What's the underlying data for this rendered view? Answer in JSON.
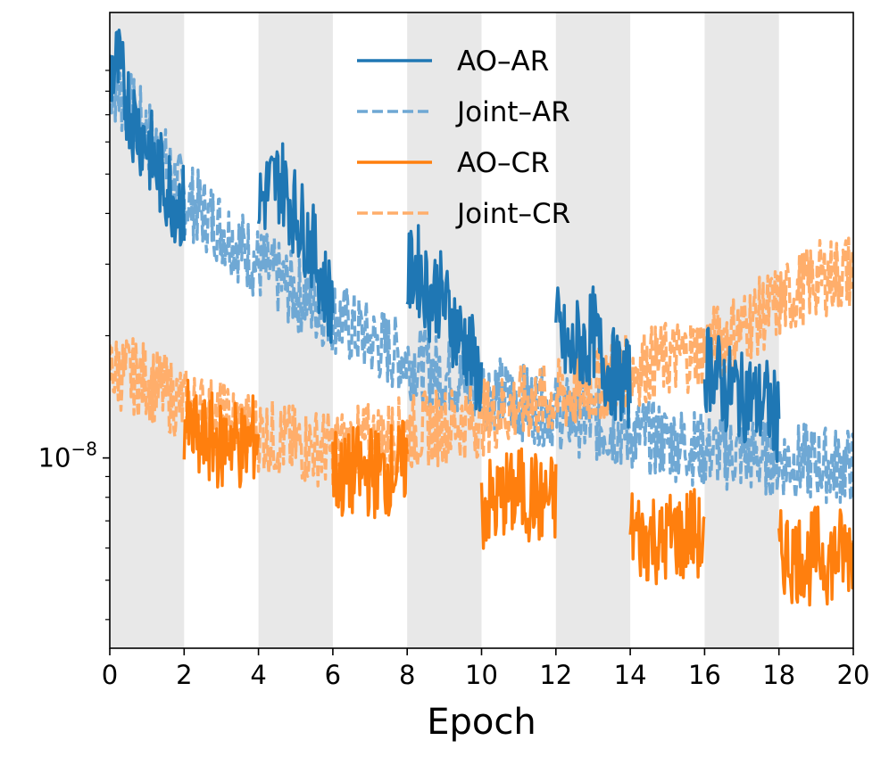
{
  "chart_data": {
    "type": "line",
    "xlabel": "Epoch",
    "ylabel": "",
    "yscale": "log",
    "xlim": [
      0,
      20
    ],
    "ylim": [
      3.4e-09,
      1.25e-07
    ],
    "x_ticks": [
      0,
      2,
      4,
      6,
      8,
      10,
      12,
      14,
      16,
      18,
      20
    ],
    "x_tick_labels": [
      "0",
      "2",
      "4",
      "6",
      "8",
      "10",
      "12",
      "14",
      "16",
      "18",
      "20"
    ],
    "y_major_tick": {
      "value": 1e-08,
      "label_base": "10",
      "label_exp": "−8"
    },
    "shaded_epoch_bands": [
      [
        0,
        2
      ],
      [
        4,
        6
      ],
      [
        8,
        10
      ],
      [
        12,
        14
      ],
      [
        16,
        18
      ]
    ],
    "legend": {
      "location": "top-center",
      "entries": [
        "AO–AR",
        "Joint–AR",
        "AO–CR",
        "Joint–CR"
      ]
    },
    "series": [
      {
        "name": "AO–AR",
        "color": "#1f77b4",
        "style": "solid",
        "segments": [
          {
            "x": [
              0,
              0.2,
              0.4,
              0.6,
              0.8,
              1.0,
              1.2,
              1.4,
              1.6,
              1.8,
              2.0
            ],
            "y": [
              8.8e-08,
              9.3e-08,
              8e-08,
              7e-08,
              6.4e-08,
              6e-08,
              5.3e-08,
              4.9e-08,
              4.6e-08,
              4.3e-08,
              4.1e-08
            ]
          },
          {
            "x": [
              4.0,
              4.2,
              4.4,
              4.6,
              4.8,
              5.0,
              5.2,
              5.4,
              5.6,
              5.8,
              6.0
            ],
            "y": [
              4.2e-08,
              4.5e-08,
              4.7e-08,
              4.9e-08,
              4.4e-08,
              4e-08,
              3.7e-08,
              3.4e-08,
              3e-08,
              2.6e-08,
              2.4e-08
            ]
          },
          {
            "x": [
              8.0,
              8.2,
              8.4,
              8.6,
              8.8,
              9.0,
              9.2,
              9.4,
              9.6,
              9.8,
              10.0
            ],
            "y": [
              2.7e-08,
              3e-08,
              2.8e-08,
              2.5e-08,
              2.6e-08,
              2.4e-08,
              2.2e-08,
              2e-08,
              1.9e-08,
              1.7e-08,
              1.55e-08
            ]
          },
          {
            "x": [
              12.0,
              12.2,
              12.4,
              12.6,
              12.8,
              13.0,
              13.2,
              13.4,
              13.6,
              13.8,
              14.0
            ],
            "y": [
              2.1e-08,
              1.9e-08,
              1.75e-08,
              1.95e-08,
              1.85e-08,
              2.05e-08,
              1.8e-08,
              1.65e-08,
              1.6e-08,
              1.55e-08,
              1.5e-08
            ]
          },
          {
            "x": [
              16.0,
              16.2,
              16.4,
              16.6,
              16.8,
              17.0,
              17.2,
              17.4,
              17.6,
              17.8,
              18.0
            ],
            "y": [
              1.65e-08,
              1.7e-08,
              1.55e-08,
              1.45e-08,
              1.5e-08,
              1.4e-08,
              1.45e-08,
              1.35e-08,
              1.4e-08,
              1.3e-08,
              1.25e-08
            ]
          }
        ]
      },
      {
        "name": "Joint–AR",
        "color": "#6fa8d4",
        "style": "dashed",
        "segments": [
          {
            "x": [
              0,
              1,
              2,
              3,
              4,
              5,
              6,
              7,
              8,
              9,
              10,
              11,
              12,
              13,
              14,
              15,
              16,
              17,
              18,
              19,
              20
            ],
            "y": [
              8.5e-08,
              6.3e-08,
              4.4e-08,
              3.7e-08,
              3e-08,
              2.55e-08,
              2.25e-08,
              1.95e-08,
              1.75e-08,
              1.6e-08,
              1.48e-08,
              1.38e-08,
              1.3e-08,
              1.22e-08,
              1.15e-08,
              1.1e-08,
              1.05e-08,
              1.02e-08,
              9.9e-09,
              9.7e-09,
              9.5e-09
            ]
          }
        ]
      },
      {
        "name": "AO–CR",
        "color": "#ff7f0e",
        "style": "solid",
        "segments": [
          {
            "x": [
              2.0,
              2.2,
              2.4,
              2.6,
              2.8,
              3.0,
              3.2,
              3.4,
              3.6,
              3.8,
              4.0
            ],
            "y": [
              1.25e-08,
              1.15e-08,
              1.08e-08,
              1.1e-08,
              1.12e-08,
              1.05e-08,
              1.15e-08,
              1.1e-08,
              1.05e-08,
              1.1e-08,
              1.15e-08
            ]
          },
          {
            "x": [
              6.0,
              6.2,
              6.4,
              6.6,
              6.8,
              7.0,
              7.2,
              7.4,
              7.6,
              7.8,
              8.0
            ],
            "y": [
              9.5e-09,
              9e-09,
              8.8e-09,
              9.5e-09,
              9e-09,
              9.3e-09,
              9.2e-09,
              9e-09,
              9.6e-09,
              9.4e-09,
              1e-08
            ]
          },
          {
            "x": [
              10.0,
              10.2,
              10.4,
              10.6,
              10.8,
              11.0,
              11.2,
              11.4,
              11.6,
              11.8,
              12.0
            ],
            "y": [
              7.4e-09,
              7.8e-09,
              7.6e-09,
              8.2e-09,
              8e-09,
              8.4e-09,
              7.9e-09,
              8.2e-09,
              7.7e-09,
              8e-09,
              7.8e-09
            ]
          },
          {
            "x": [
              14.0,
              14.2,
              14.4,
              14.6,
              14.8,
              15.0,
              15.2,
              15.4,
              15.6,
              15.8,
              16.0
            ],
            "y": [
              6.8e-09,
              6.5e-09,
              6.2e-09,
              6.6e-09,
              6e-09,
              6.4e-09,
              6.6e-09,
              6.2e-09,
              6.8e-09,
              6.4e-09,
              6e-09
            ]
          },
          {
            "x": [
              18.0,
              18.2,
              18.4,
              18.6,
              18.8,
              19.0,
              19.2,
              19.4,
              19.6,
              19.8,
              20.0
            ],
            "y": [
              5.7e-09,
              5.9e-09,
              5.6e-09,
              5.8e-09,
              5.5e-09,
              6e-09,
              5.7e-09,
              5.6e-09,
              5.9e-09,
              5.8e-09,
              6e-09
            ]
          }
        ]
      },
      {
        "name": "Joint–CR",
        "color": "#ffae6b",
        "style": "dashed",
        "segments": [
          {
            "x": [
              0,
              1,
              2,
              3,
              4,
              5,
              6,
              7,
              8,
              9,
              10,
              11,
              12,
              13,
              14,
              15,
              16,
              17,
              18,
              19,
              20
            ],
            "y": [
              1.65e-08,
              1.55e-08,
              1.35e-08,
              1.25e-08,
              1.15e-08,
              1.08e-08,
              1.05e-08,
              1.1e-08,
              1.15e-08,
              1.2e-08,
              1.25e-08,
              1.35e-08,
              1.4e-08,
              1.5e-08,
              1.65e-08,
              1.75e-08,
              1.85e-08,
              2.1e-08,
              2.4e-08,
              2.75e-08,
              2.9e-08
            ]
          }
        ]
      }
    ]
  }
}
